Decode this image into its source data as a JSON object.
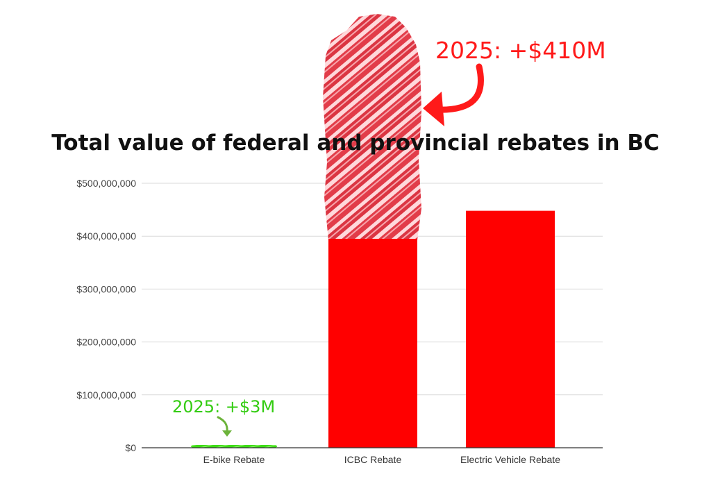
{
  "chart_data": {
    "type": "bar",
    "title": "Total value of federal and provincial rebates in BC",
    "xlabel": "",
    "ylabel": "",
    "categories": [
      "E-bike Rebate",
      "ICBC Rebate",
      "Electric Vehicle Rebate"
    ],
    "values": [
      4000000,
      395000000,
      448000000
    ],
    "ylim": [
      0,
      500000000
    ],
    "yticks": [
      0,
      100000000,
      200000000,
      300000000,
      400000000,
      500000000
    ],
    "ytick_labels": [
      "$0",
      "$100,000,000",
      "$200,000,000",
      "$300,000,000",
      "$400,000,000",
      "$500,000,000"
    ],
    "grid": true,
    "legend": "none",
    "bar_colors": [
      "#3ddc15",
      "#ff0000",
      "#ff0000"
    ],
    "annotations": [
      {
        "text": "2025: +$410M",
        "category": "ICBC Rebate",
        "added_value": 410000000,
        "color": "#ff1a1a",
        "style": "scribbled extension above bar with curved arrow"
      },
      {
        "text": "2025: +$3M",
        "category": "E-bike Rebate",
        "added_value": 3000000,
        "color": "#33cc11",
        "style": "scribbled extension above bar with small arrow"
      }
    ]
  }
}
